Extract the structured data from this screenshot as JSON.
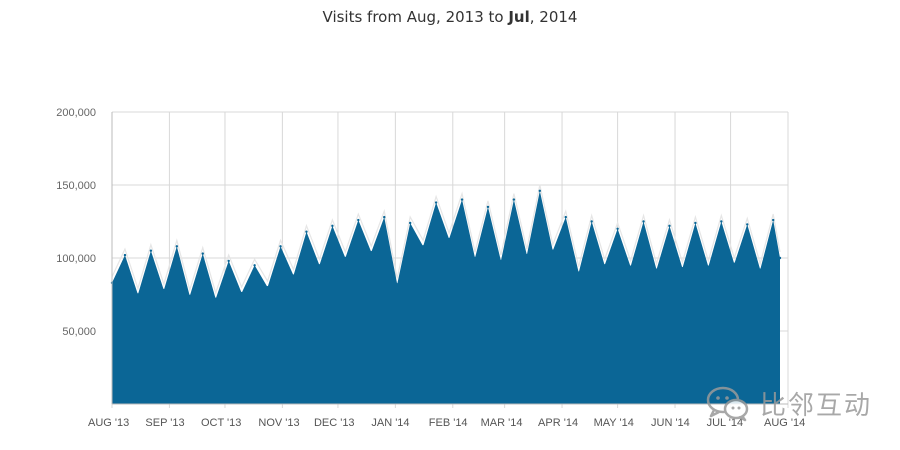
{
  "title": {
    "prefix": "Visits from Aug, 2013 to ",
    "bold": "Jul",
    "suffix": ", 2014"
  },
  "watermark": {
    "icon": "wechat-icon",
    "text": "比邻互动"
  },
  "colors": {
    "fill": "#0b6696",
    "overlay_line": "#e6e6e6",
    "grid": "#d8d8d8",
    "axis": "#bbbbbb"
  },
  "chart_data": {
    "type": "area",
    "title": "Visits from Aug, 2013 to Jul, 2014",
    "xlabel": "",
    "ylabel": "",
    "ylim": [
      0,
      200000
    ],
    "y_ticks": [
      {
        "value": 50000,
        "label": "50,000"
      },
      {
        "value": 100000,
        "label": "100,000"
      },
      {
        "value": 150000,
        "label": "150,000"
      },
      {
        "value": 200000,
        "label": "200,000"
      }
    ],
    "x_ticks": [
      "AUG '13",
      "SEP '13",
      "OCT '13",
      "NOV '13",
      "DEC '13",
      "JAN '14",
      "FEB '14",
      "MAR '14",
      "APR '14",
      "MAY '14",
      "JUN '14",
      "JUL '14",
      "AUG '14"
    ],
    "grid": true,
    "series": [
      {
        "name": "",
        "x": [
          "2013-08-01",
          "2013-08-08",
          "2013-08-15",
          "2013-08-22",
          "2013-08-29",
          "2013-09-05",
          "2013-09-12",
          "2013-09-19",
          "2013-09-26",
          "2013-10-03",
          "2013-10-10",
          "2013-10-17",
          "2013-10-24",
          "2013-10-31",
          "2013-11-07",
          "2013-11-14",
          "2013-11-21",
          "2013-11-28",
          "2013-12-05",
          "2013-12-12",
          "2013-12-19",
          "2013-12-26",
          "2014-01-02",
          "2014-01-09",
          "2014-01-16",
          "2014-01-23",
          "2014-01-30",
          "2014-02-06",
          "2014-02-13",
          "2014-02-20",
          "2014-02-27",
          "2014-03-06",
          "2014-03-13",
          "2014-03-20",
          "2014-03-27",
          "2014-04-03",
          "2014-04-10",
          "2014-04-17",
          "2014-04-24",
          "2014-05-01",
          "2014-05-08",
          "2014-05-15",
          "2014-05-22",
          "2014-05-29",
          "2014-06-05",
          "2014-06-12",
          "2014-06-19",
          "2014-06-26",
          "2014-07-03",
          "2014-07-10",
          "2014-07-17",
          "2014-07-24",
          "2014-07-31"
        ],
        "values": [
          83000,
          102000,
          75000,
          105000,
          78000,
          108000,
          74000,
          103000,
          72000,
          98000,
          76000,
          95000,
          80000,
          108000,
          88000,
          118000,
          95000,
          122000,
          100000,
          126000,
          104000,
          128000,
          82000,
          124000,
          108000,
          138000,
          113000,
          140000,
          100000,
          135000,
          98000,
          140000,
          102000,
          146000,
          105000,
          128000,
          90000,
          125000,
          95000,
          120000,
          94000,
          125000,
          92000,
          122000,
          93000,
          124000,
          94000,
          125000,
          96000,
          123000,
          92000,
          126000,
          100000
        ]
      }
    ]
  }
}
